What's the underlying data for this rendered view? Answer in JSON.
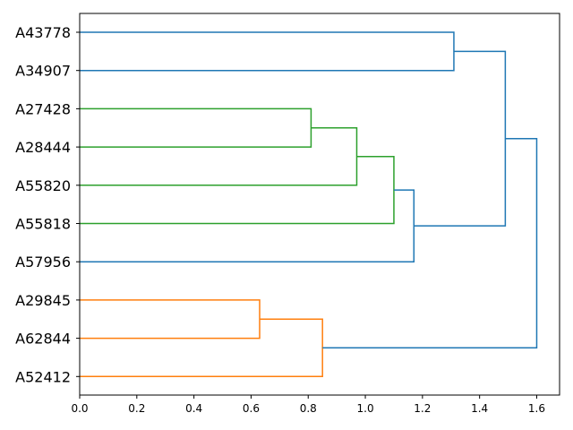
{
  "chart_data": {
    "type": "dendrogram",
    "orientation": "left",
    "leaves": [
      "A43778",
      "A34907",
      "A27428",
      "A28444",
      "A55820",
      "A55818",
      "A57956",
      "A29845",
      "A62844",
      "A52412"
    ],
    "merges": [
      {
        "left": "A43778",
        "right": "A34907",
        "height": 1.31,
        "color": "#1f77b4"
      },
      {
        "left": "A27428",
        "right": "A28444",
        "height": 0.81,
        "color": "#2ca02c"
      },
      {
        "left": "A27428+A28444",
        "right": "A55820",
        "height": 0.97,
        "color": "#2ca02c"
      },
      {
        "left": "A27428+A28444+A55820",
        "right": "A55818",
        "height": 1.1,
        "color": "#2ca02c"
      },
      {
        "left": "A27428+A28444+A55820+A55818",
        "right": "A57956",
        "height": 1.17,
        "color": "#1f77b4"
      },
      {
        "left": "A43778+A34907",
        "right": "A27428+A28444+A55820+A55818+A57956",
        "height": 1.49,
        "color": "#1f77b4"
      },
      {
        "left": "A29845",
        "right": "A62844",
        "height": 0.63,
        "color": "#ff7f0e"
      },
      {
        "left": "A29845+A62844",
        "right": "A52412",
        "height": 0.85,
        "color": "#ff7f0e"
      },
      {
        "left": "A43778+A34907+A27428+A28444+A55820+A55818+A57956",
        "right": "A29845+A62844+A52412",
        "height": 1.6,
        "color": "#1f77b4"
      }
    ],
    "xticks": [
      0.0,
      0.2,
      0.4,
      0.6,
      0.8,
      1.0,
      1.2,
      1.4,
      1.6
    ],
    "xtick_labels": [
      "0.0",
      "0.2",
      "0.4",
      "0.6",
      "0.8",
      "1.0",
      "1.2",
      "1.4",
      "1.6"
    ],
    "xlim": [
      0,
      1.68
    ],
    "title": "",
    "xlabel": "",
    "ylabel": ""
  }
}
